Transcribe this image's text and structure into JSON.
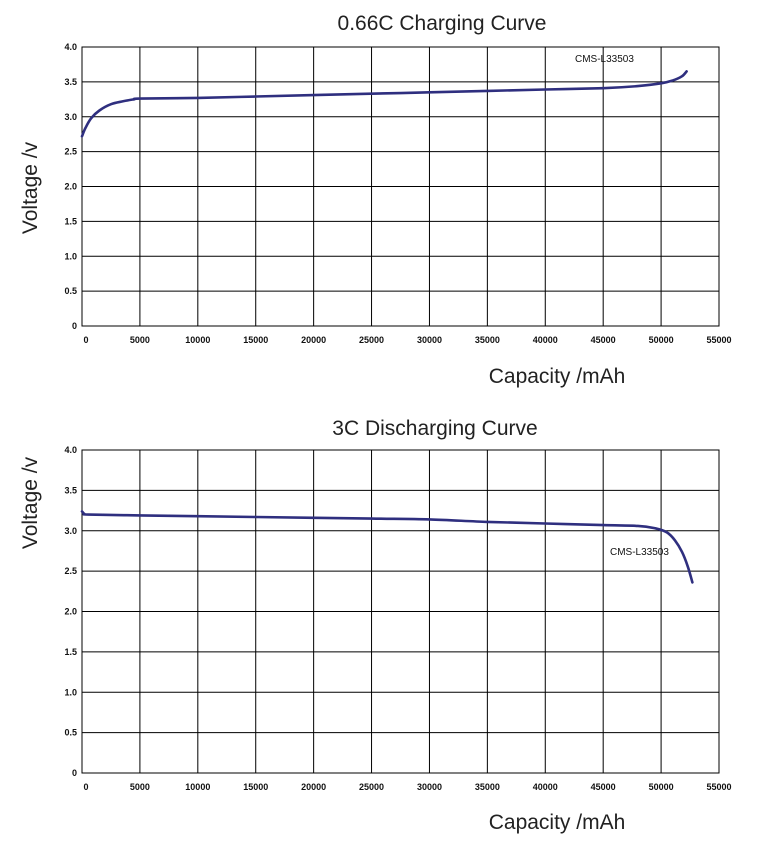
{
  "chart_data": [
    {
      "type": "line",
      "title": "0.66C Charging Curve",
      "xlabel": "Capacity /mAh",
      "ylabel": "Voltage /v",
      "xlim": [
        0,
        55000
      ],
      "ylim": [
        0,
        4.0
      ],
      "grid": true,
      "x_ticks": [
        "0",
        "5000",
        "10000",
        "15000",
        "20000",
        "25000",
        "30000",
        "35000",
        "40000",
        "45000",
        "50000",
        "55000"
      ],
      "y_ticks": [
        "0",
        "0.5",
        "1.0",
        "1.5",
        "2.0",
        "2.5",
        "3.0",
        "3.5",
        "4.0"
      ],
      "series_color": "#2f2f7f",
      "annotation": {
        "text": "CMS-L33503"
      },
      "series": [
        {
          "x": [
            0,
            300,
            800,
            1500,
            2500,
            3500,
            4500,
            5000,
            10000,
            15000,
            20000,
            25000,
            30000,
            35000,
            40000,
            45000,
            48000,
            50000,
            51000,
            51800,
            52200
          ],
          "y": [
            2.72,
            2.84,
            2.98,
            3.09,
            3.18,
            3.22,
            3.25,
            3.26,
            3.27,
            3.29,
            3.31,
            3.33,
            3.35,
            3.37,
            3.39,
            3.41,
            3.44,
            3.48,
            3.52,
            3.58,
            3.65
          ]
        }
      ]
    },
    {
      "type": "line",
      "title": "3C Discharging Curve",
      "xlabel": "Capacity /mAh",
      "ylabel": "Voltage /v",
      "xlim": [
        0,
        55000
      ],
      "ylim": [
        0,
        4.0
      ],
      "grid": true,
      "x_ticks": [
        "0",
        "5000",
        "10000",
        "15000",
        "20000",
        "25000",
        "30000",
        "35000",
        "40000",
        "45000",
        "50000",
        "55000"
      ],
      "y_ticks": [
        "0",
        "0.5",
        "1.0",
        "1.5",
        "2.0",
        "2.5",
        "3.0",
        "3.5",
        "4.0"
      ],
      "series_color": "#2f2f7f",
      "annotation": {
        "text": "CMS-L33503"
      },
      "series": [
        {
          "x": [
            0,
            200,
            600,
            5000,
            10000,
            15000,
            20000,
            25000,
            30000,
            35000,
            40000,
            45000,
            48000,
            49500,
            50500,
            51200,
            51800,
            52300,
            52700
          ],
          "y": [
            3.24,
            3.21,
            3.2,
            3.19,
            3.18,
            3.17,
            3.16,
            3.15,
            3.14,
            3.11,
            3.09,
            3.07,
            3.06,
            3.03,
            2.98,
            2.88,
            2.74,
            2.56,
            2.36
          ]
        }
      ]
    }
  ]
}
